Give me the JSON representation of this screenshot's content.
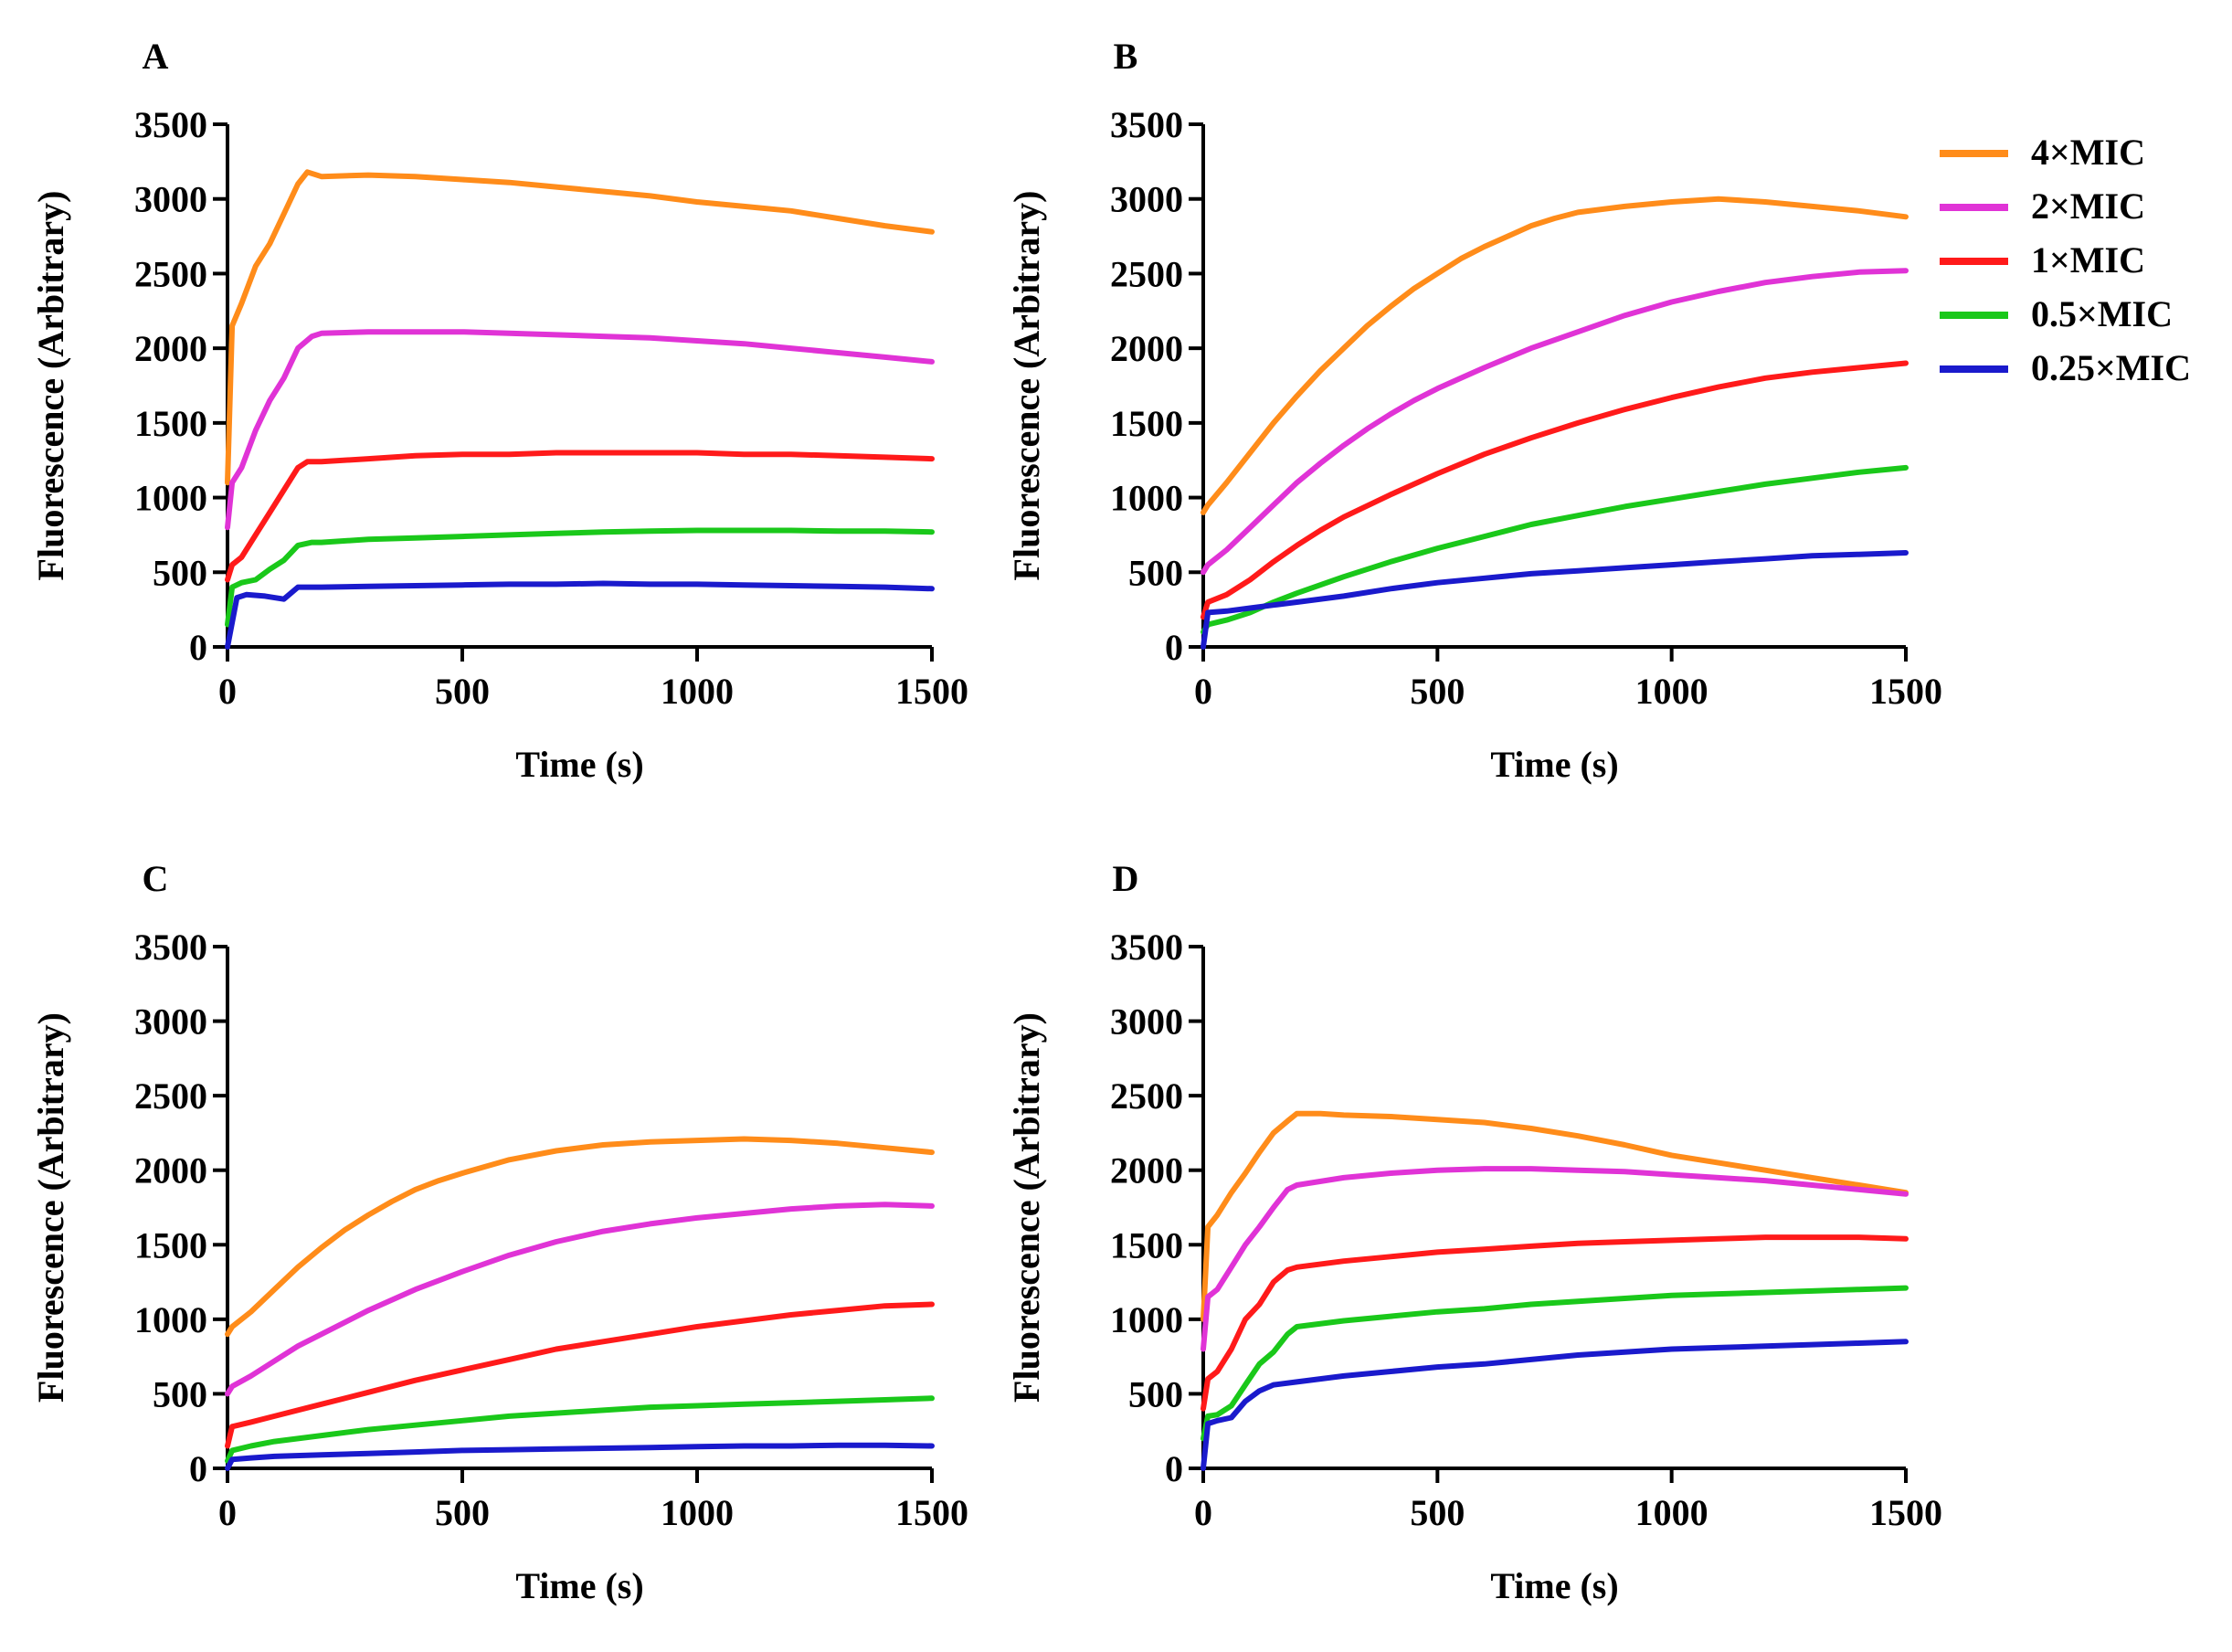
{
  "legend": {
    "entries": [
      {
        "label": "4×MIC",
        "color": "#FF8C1A"
      },
      {
        "label": "2×MIC",
        "color": "#E033D6"
      },
      {
        "label": "1×MIC",
        "color": "#FF1A1A"
      },
      {
        "label": "0.5×MIC",
        "color": "#1AC81A"
      },
      {
        "label": "0.25×MIC",
        "color": "#1A1ACC"
      }
    ]
  },
  "chart_data": [
    {
      "panel": "A",
      "type": "line",
      "xlabel": "Time (s)",
      "ylabel": "Fluorescence (Arbitrary)",
      "xlim": [
        0,
        1500
      ],
      "ylim": [
        0,
        3500
      ],
      "xticks": [
        "0",
        "500",
        "1000",
        "1500"
      ],
      "yticks": [
        "0",
        "500",
        "1000",
        "1500",
        "2000",
        "2500",
        "3000",
        "3500"
      ],
      "series": [
        {
          "name": "4×MIC",
          "x": [
            0,
            10,
            30,
            60,
            90,
            120,
            150,
            170,
            200,
            300,
            400,
            500,
            600,
            700,
            800,
            900,
            1000,
            1100,
            1200,
            1300,
            1400,
            1500
          ],
          "y": [
            1100,
            2150,
            2300,
            2550,
            2700,
            2900,
            3100,
            3180,
            3150,
            3160,
            3150,
            3130,
            3110,
            3080,
            3050,
            3020,
            2980,
            2950,
            2920,
            2870,
            2820,
            2780
          ]
        },
        {
          "name": "2×MIC",
          "x": [
            0,
            10,
            30,
            60,
            90,
            120,
            150,
            180,
            200,
            300,
            400,
            500,
            600,
            700,
            800,
            900,
            1000,
            1100,
            1200,
            1300,
            1400,
            1500
          ],
          "y": [
            800,
            1100,
            1200,
            1450,
            1650,
            1800,
            2000,
            2080,
            2100,
            2110,
            2110,
            2110,
            2100,
            2090,
            2080,
            2070,
            2050,
            2030,
            2000,
            1970,
            1940,
            1910
          ]
        },
        {
          "name": "1×MIC",
          "x": [
            0,
            10,
            30,
            60,
            90,
            120,
            150,
            170,
            200,
            300,
            400,
            500,
            600,
            700,
            800,
            900,
            1000,
            1100,
            1200,
            1300,
            1400,
            1500
          ],
          "y": [
            450,
            550,
            600,
            750,
            900,
            1050,
            1200,
            1240,
            1240,
            1260,
            1280,
            1290,
            1290,
            1300,
            1300,
            1300,
            1300,
            1290,
            1290,
            1280,
            1270,
            1260
          ]
        },
        {
          "name": "0.5×MIC",
          "x": [
            0,
            10,
            30,
            60,
            90,
            120,
            150,
            180,
            200,
            300,
            400,
            500,
            600,
            700,
            800,
            900,
            1000,
            1100,
            1200,
            1300,
            1400,
            1500
          ],
          "y": [
            150,
            400,
            430,
            450,
            520,
            580,
            680,
            700,
            700,
            720,
            730,
            740,
            750,
            760,
            770,
            775,
            780,
            780,
            780,
            775,
            775,
            770
          ]
        },
        {
          "name": "0.25×MIC",
          "x": [
            0,
            20,
            40,
            80,
            120,
            150,
            170,
            200,
            300,
            400,
            500,
            600,
            700,
            800,
            900,
            1000,
            1100,
            1200,
            1300,
            1400,
            1500
          ],
          "y": [
            0,
            330,
            350,
            340,
            320,
            400,
            400,
            400,
            405,
            410,
            415,
            420,
            420,
            425,
            420,
            420,
            415,
            410,
            405,
            400,
            390
          ]
        }
      ]
    },
    {
      "panel": "B",
      "type": "line",
      "xlabel": "Time (s)",
      "ylabel": "Fluorescence (Arbitrary)",
      "xlim": [
        0,
        1500
      ],
      "ylim": [
        0,
        3500
      ],
      "xticks": [
        "0",
        "500",
        "1000",
        "1500"
      ],
      "yticks": [
        "0",
        "500",
        "1000",
        "1500",
        "2000",
        "2500",
        "3000",
        "3500"
      ],
      "series": [
        {
          "name": "4×MIC",
          "x": [
            0,
            10,
            50,
            100,
            150,
            200,
            250,
            300,
            350,
            400,
            450,
            500,
            550,
            600,
            650,
            700,
            750,
            800,
            900,
            1000,
            1100,
            1200,
            1300,
            1400,
            1500
          ],
          "y": [
            900,
            950,
            1100,
            1300,
            1500,
            1680,
            1850,
            2000,
            2150,
            2280,
            2400,
            2500,
            2600,
            2680,
            2750,
            2820,
            2870,
            2910,
            2950,
            2980,
            3000,
            2980,
            2950,
            2920,
            2880
          ]
        },
        {
          "name": "2×MIC",
          "x": [
            0,
            10,
            50,
            100,
            150,
            200,
            250,
            300,
            350,
            400,
            450,
            500,
            550,
            600,
            700,
            800,
            900,
            1000,
            1100,
            1200,
            1300,
            1400,
            1500
          ],
          "y": [
            500,
            550,
            650,
            800,
            950,
            1100,
            1230,
            1350,
            1460,
            1560,
            1650,
            1730,
            1800,
            1870,
            2000,
            2110,
            2220,
            2310,
            2380,
            2440,
            2480,
            2510,
            2520
          ]
        },
        {
          "name": "1×MIC",
          "x": [
            0,
            10,
            50,
            100,
            150,
            200,
            250,
            300,
            400,
            500,
            600,
            700,
            800,
            900,
            1000,
            1100,
            1200,
            1300,
            1400,
            1500
          ],
          "y": [
            200,
            300,
            350,
            450,
            570,
            680,
            780,
            870,
            1020,
            1160,
            1290,
            1400,
            1500,
            1590,
            1670,
            1740,
            1800,
            1840,
            1870,
            1900
          ]
        },
        {
          "name": "0.5×MIC",
          "x": [
            0,
            10,
            50,
            100,
            150,
            200,
            300,
            400,
            500,
            600,
            700,
            800,
            900,
            1000,
            1100,
            1200,
            1300,
            1400,
            1500
          ],
          "y": [
            100,
            150,
            180,
            230,
            300,
            360,
            470,
            570,
            660,
            740,
            820,
            880,
            940,
            990,
            1040,
            1090,
            1130,
            1170,
            1200
          ]
        },
        {
          "name": "0.25×MIC",
          "x": [
            0,
            10,
            50,
            100,
            150,
            200,
            300,
            400,
            500,
            600,
            700,
            800,
            900,
            1000,
            1100,
            1200,
            1300,
            1400,
            1500
          ],
          "y": [
            0,
            230,
            240,
            260,
            280,
            300,
            340,
            390,
            430,
            460,
            490,
            510,
            530,
            550,
            570,
            590,
            610,
            620,
            630
          ]
        }
      ]
    },
    {
      "panel": "C",
      "type": "line",
      "xlabel": "Time (s)",
      "ylabel": "Fluorescence (Arbitrary)",
      "xlim": [
        0,
        1500
      ],
      "ylim": [
        0,
        3500
      ],
      "xticks": [
        "0",
        "500",
        "1000",
        "1500"
      ],
      "yticks": [
        "0",
        "500",
        "1000",
        "1500",
        "2000",
        "2500",
        "3000",
        "3500"
      ],
      "series": [
        {
          "name": "4×MIC",
          "x": [
            0,
            10,
            50,
            100,
            150,
            200,
            250,
            300,
            350,
            400,
            450,
            500,
            600,
            700,
            800,
            900,
            1000,
            1100,
            1200,
            1300,
            1400,
            1500
          ],
          "y": [
            900,
            950,
            1050,
            1200,
            1350,
            1480,
            1600,
            1700,
            1790,
            1870,
            1930,
            1980,
            2070,
            2130,
            2170,
            2190,
            2200,
            2210,
            2200,
            2180,
            2150,
            2120
          ]
        },
        {
          "name": "2×MIC",
          "x": [
            0,
            10,
            50,
            100,
            150,
            200,
            300,
            400,
            500,
            600,
            700,
            800,
            900,
            1000,
            1100,
            1200,
            1300,
            1400,
            1500
          ],
          "y": [
            500,
            550,
            620,
            720,
            820,
            900,
            1060,
            1200,
            1320,
            1430,
            1520,
            1590,
            1640,
            1680,
            1710,
            1740,
            1760,
            1770,
            1760
          ]
        },
        {
          "name": "1×MIC",
          "x": [
            0,
            10,
            50,
            100,
            200,
            300,
            400,
            500,
            600,
            700,
            800,
            900,
            1000,
            1100,
            1200,
            1300,
            1400,
            1500
          ],
          "y": [
            150,
            280,
            310,
            350,
            430,
            510,
            590,
            660,
            730,
            800,
            850,
            900,
            950,
            990,
            1030,
            1060,
            1090,
            1100
          ]
        },
        {
          "name": "0.5×MIC",
          "x": [
            0,
            10,
            50,
            100,
            200,
            300,
            400,
            500,
            600,
            700,
            800,
            900,
            1000,
            1100,
            1200,
            1300,
            1400,
            1500
          ],
          "y": [
            50,
            120,
            150,
            180,
            220,
            260,
            290,
            320,
            350,
            370,
            390,
            410,
            420,
            430,
            440,
            450,
            460,
            470
          ]
        },
        {
          "name": "0.25×MIC",
          "x": [
            0,
            10,
            50,
            100,
            200,
            300,
            400,
            500,
            600,
            700,
            800,
            900,
            1000,
            1100,
            1200,
            1300,
            1400,
            1500
          ],
          "y": [
            0,
            60,
            70,
            80,
            90,
            100,
            110,
            120,
            125,
            130,
            135,
            140,
            145,
            150,
            150,
            155,
            155,
            150
          ]
        }
      ]
    },
    {
      "panel": "D",
      "type": "line",
      "xlabel": "Time (s)",
      "ylabel": "Fluorescence (Arbitrary)",
      "xlim": [
        0,
        1500
      ],
      "ylim": [
        0,
        3500
      ],
      "xticks": [
        "0",
        "500",
        "1000",
        "1500"
      ],
      "yticks": [
        "0",
        "500",
        "1000",
        "1500",
        "2000",
        "2500",
        "3000",
        "3500"
      ],
      "series": [
        {
          "name": "4×MIC",
          "x": [
            0,
            10,
            30,
            60,
            90,
            120,
            150,
            180,
            200,
            250,
            300,
            400,
            500,
            600,
            700,
            800,
            900,
            1000,
            1100,
            1200,
            1300,
            1400,
            1500
          ],
          "y": [
            1000,
            1620,
            1700,
            1850,
            1980,
            2120,
            2250,
            2330,
            2380,
            2380,
            2370,
            2360,
            2340,
            2320,
            2280,
            2230,
            2170,
            2100,
            2050,
            2000,
            1950,
            1900,
            1850
          ]
        },
        {
          "name": "2×MIC",
          "x": [
            0,
            10,
            30,
            60,
            90,
            120,
            150,
            180,
            200,
            300,
            400,
            500,
            600,
            700,
            800,
            900,
            1000,
            1100,
            1200,
            1300,
            1400,
            1500
          ],
          "y": [
            800,
            1150,
            1200,
            1350,
            1500,
            1620,
            1750,
            1870,
            1900,
            1950,
            1980,
            2000,
            2010,
            2010,
            2000,
            1990,
            1970,
            1950,
            1930,
            1900,
            1870,
            1840
          ]
        },
        {
          "name": "1×MIC",
          "x": [
            0,
            10,
            30,
            60,
            90,
            120,
            150,
            180,
            200,
            300,
            400,
            500,
            600,
            700,
            800,
            900,
            1000,
            1100,
            1200,
            1300,
            1400,
            1500
          ],
          "y": [
            400,
            600,
            650,
            800,
            1000,
            1100,
            1250,
            1330,
            1350,
            1390,
            1420,
            1450,
            1470,
            1490,
            1510,
            1520,
            1530,
            1540,
            1550,
            1550,
            1550,
            1540
          ]
        },
        {
          "name": "0.5×MIC",
          "x": [
            0,
            10,
            30,
            60,
            90,
            120,
            150,
            180,
            200,
            300,
            400,
            500,
            600,
            700,
            800,
            900,
            1000,
            1100,
            1200,
            1300,
            1400,
            1500
          ],
          "y": [
            200,
            350,
            360,
            420,
            560,
            700,
            780,
            900,
            950,
            990,
            1020,
            1050,
            1070,
            1100,
            1120,
            1140,
            1160,
            1170,
            1180,
            1190,
            1200,
            1210
          ]
        },
        {
          "name": "0.25×MIC",
          "x": [
            0,
            10,
            30,
            60,
            90,
            120,
            150,
            200,
            300,
            400,
            500,
            600,
            700,
            800,
            900,
            1000,
            1100,
            1200,
            1300,
            1400,
            1500
          ],
          "y": [
            0,
            300,
            320,
            340,
            450,
            520,
            560,
            580,
            620,
            650,
            680,
            700,
            730,
            760,
            780,
            800,
            810,
            820,
            830,
            840,
            850
          ]
        }
      ]
    }
  ]
}
